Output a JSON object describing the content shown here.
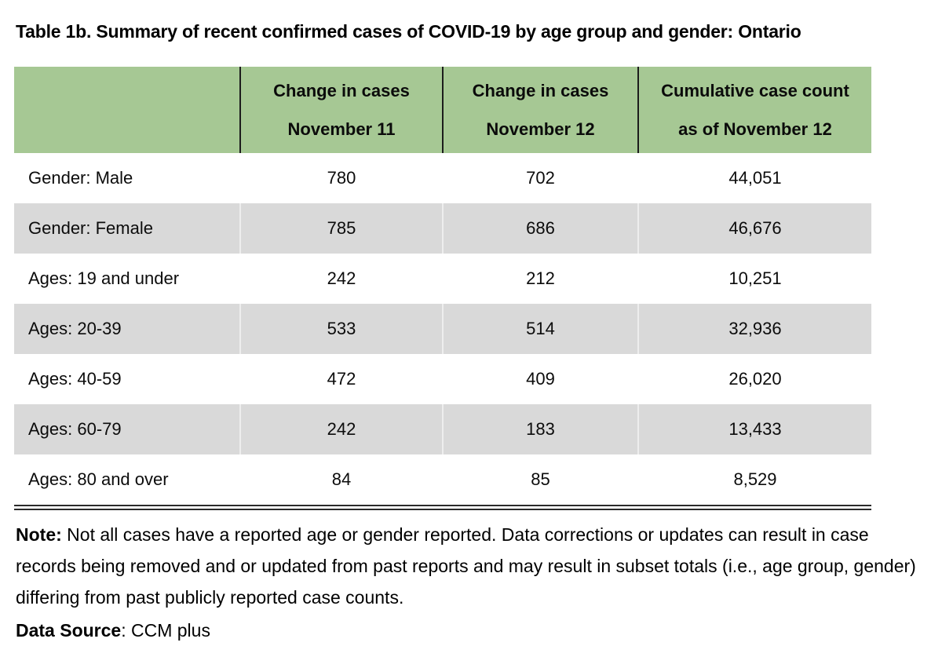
{
  "title": "Table 1b. Summary of recent confirmed cases of COVID-19 by age group and gender: Ontario",
  "table": {
    "headers": [
      {
        "line1": "Change in cases",
        "line2": "November 11"
      },
      {
        "line1": "Change in cases",
        "line2": "November 12"
      },
      {
        "line1": "Cumulative case count",
        "line2": "as of November 12"
      }
    ],
    "rows": [
      {
        "label": "Gender: Male",
        "values": [
          "780",
          "702",
          "44,051"
        ]
      },
      {
        "label": "Gender: Female",
        "values": [
          "785",
          "686",
          "46,676"
        ]
      },
      {
        "label": "Ages: 19 and under",
        "values": [
          "242",
          "212",
          "10,251"
        ]
      },
      {
        "label": "Ages: 20-39",
        "values": [
          "533",
          "514",
          "32,936"
        ]
      },
      {
        "label": "Ages: 40-59",
        "values": [
          "472",
          "409",
          "26,020"
        ]
      },
      {
        "label": "Ages: 60-79",
        "values": [
          "242",
          "183",
          "13,433"
        ]
      },
      {
        "label": "Ages: 80 and over",
        "values": [
          "84",
          "85",
          "8,529"
        ]
      }
    ]
  },
  "note": {
    "label": "Note:",
    "text": " Not all cases have a reported age or gender reported. Data corrections or updates can result in case records being removed and or updated from past reports and may result in subset totals (i.e., age group, gender) differing from past publicly reported case counts."
  },
  "source": {
    "label": "Data Source",
    "text": ": CCM plus"
  },
  "colors": {
    "header_bg": "#A6C894",
    "row_alt_bg": "#D9D9D9"
  }
}
